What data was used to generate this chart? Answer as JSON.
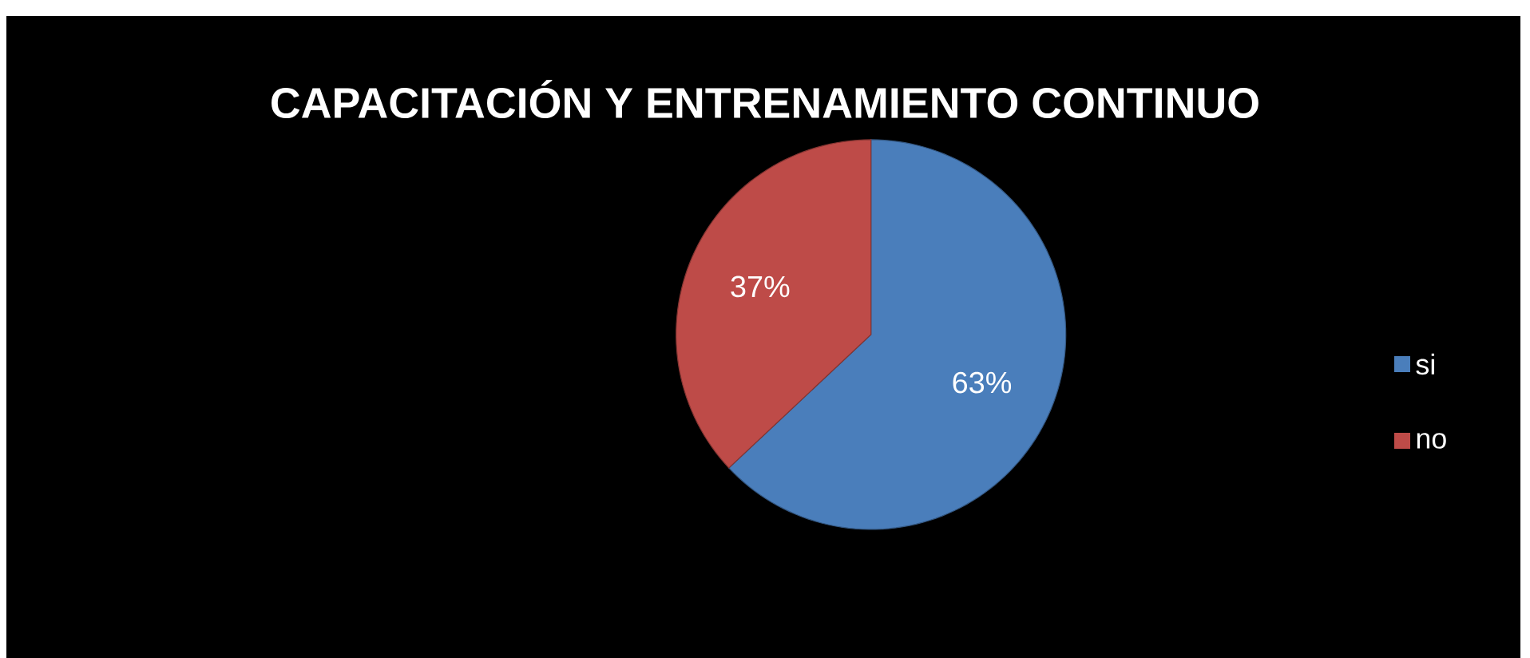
{
  "chart_data": {
    "type": "pie",
    "title": "CAPACITACIÓN Y ENTRENAMIENTO CONTINUO",
    "categories": [
      "si",
      "no"
    ],
    "values": [
      63,
      37
    ],
    "value_labels": [
      "63%",
      "37%"
    ],
    "colors": [
      "#4a7ebb",
      "#be4b48"
    ],
    "legend": "right"
  }
}
